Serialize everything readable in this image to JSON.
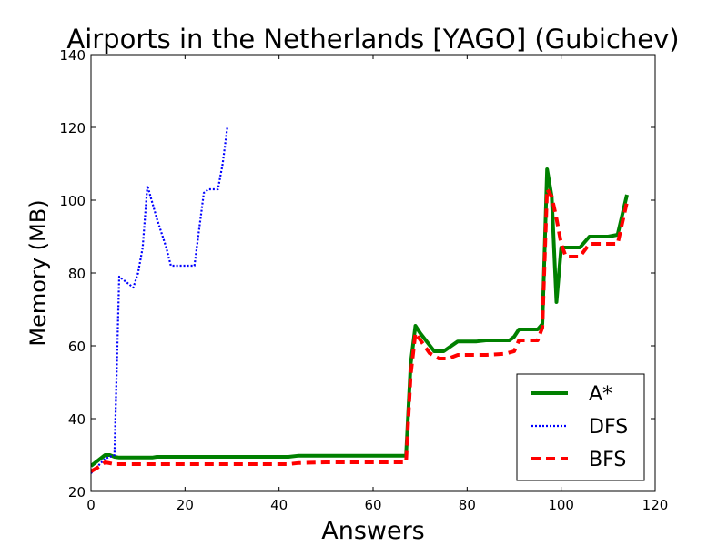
{
  "chart_data": {
    "type": "line",
    "title": "Airports in the Netherlands [YAGO] (Gubichev)",
    "xlabel": "Answers",
    "ylabel": "Memory (MB)",
    "xlim": [
      0,
      120
    ],
    "ylim": [
      20,
      140
    ],
    "xticks": [
      0,
      20,
      40,
      60,
      80,
      100,
      120
    ],
    "yticks": [
      20,
      40,
      60,
      80,
      100,
      120,
      140
    ],
    "grid": false,
    "legend_position": "lower right",
    "series": [
      {
        "name": "A*",
        "color": "#008000",
        "style": "solid",
        "x": [
          0,
          3,
          4,
          5,
          6,
          10,
          13,
          14,
          20,
          30,
          40,
          42,
          44,
          50,
          60,
          67,
          68,
          69,
          70,
          73,
          75,
          78,
          82,
          84,
          87,
          89,
          90,
          91,
          95,
          96,
          97,
          98,
          99,
          100,
          104,
          106,
          110,
          112,
          114
        ],
        "y": [
          27,
          30,
          30,
          29.5,
          29.3,
          29.3,
          29.3,
          29.5,
          29.5,
          29.5,
          29.5,
          29.5,
          29.8,
          29.8,
          29.8,
          29.8,
          55,
          65.5,
          63.5,
          58.5,
          58.5,
          61.2,
          61.2,
          61.5,
          61.5,
          61.5,
          62.5,
          64.5,
          64.5,
          66,
          108.5,
          101,
          72,
          87,
          87,
          90,
          90,
          90.5,
          101.5
        ]
      },
      {
        "name": "DFS",
        "color": "#0000ff",
        "style": "dotted",
        "x": [
          0,
          3,
          5,
          6,
          7,
          9,
          10,
          11,
          12,
          14,
          16,
          17,
          20,
          22,
          24,
          25,
          27,
          28,
          29
        ],
        "y": [
          25,
          29,
          30,
          79,
          78,
          76,
          80,
          87,
          104,
          95,
          87,
          82,
          82,
          82,
          102,
          103,
          103,
          110,
          120
        ]
      },
      {
        "name": "BFS",
        "color": "#ff0000",
        "style": "dashed",
        "x": [
          0,
          2,
          3,
          5,
          10,
          20,
          30,
          40,
          42,
          44,
          50,
          60,
          66,
          67,
          68,
          69,
          72,
          74,
          76,
          78,
          82,
          84,
          88,
          90,
          91,
          95,
          96,
          97,
          98,
          99,
          100,
          101,
          104,
          106,
          110,
          112,
          114
        ],
        "y": [
          25.5,
          27,
          28,
          27.5,
          27.5,
          27.5,
          27.5,
          27.5,
          27.5,
          27.8,
          28,
          28,
          28,
          28,
          52,
          63.5,
          58,
          56.5,
          56.5,
          57.5,
          57.5,
          57.5,
          57.8,
          58.5,
          61.5,
          61.5,
          65,
          103,
          101,
          95,
          88,
          84.5,
          84.5,
          88,
          88,
          88,
          99.5
        ]
      }
    ]
  }
}
